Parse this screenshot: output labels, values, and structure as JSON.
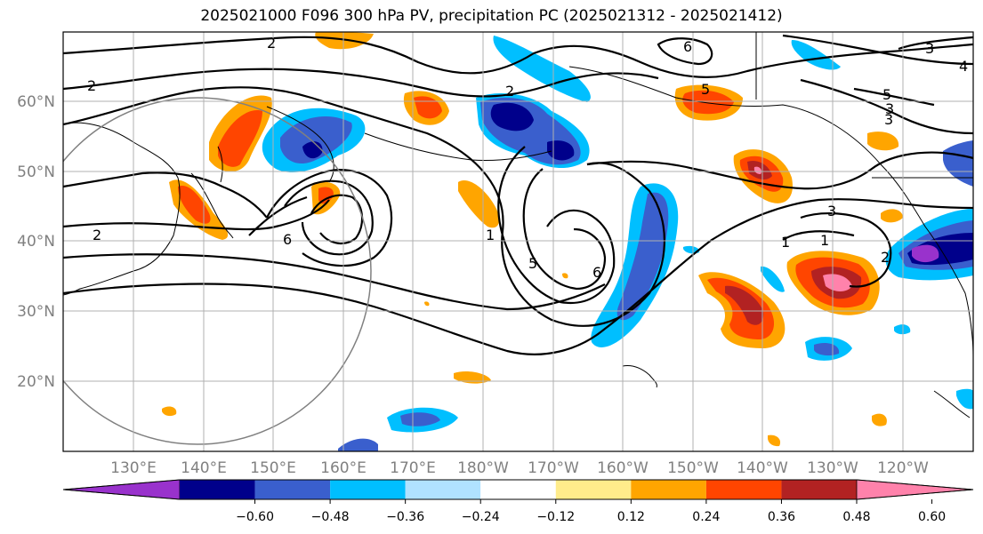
{
  "title": "2025021000 F096 300 hPa PV, precipitation PC (2025021312 - 2025021412)",
  "map": {
    "lat_labels": [
      "60°N",
      "50°N",
      "40°N",
      "30°N",
      "20°N"
    ],
    "lon_labels": [
      "130°E",
      "140°E",
      "150°E",
      "160°E",
      "170°E",
      "180°W",
      "170°W",
      "160°W",
      "150°W",
      "140°W",
      "130°W",
      "120°W"
    ],
    "contour_labels": [
      "2",
      "2",
      "2",
      "2",
      "6",
      "1",
      "5",
      "6",
      "6",
      "5",
      "3",
      "4",
      "3",
      "3",
      "1",
      "1",
      "2",
      "5",
      "3"
    ]
  },
  "colorbar": {
    "ticks": [
      "−0.60",
      "−0.48",
      "−0.36",
      "−0.24",
      "−0.12",
      "0.12",
      "0.24",
      "0.36",
      "0.48",
      "0.60"
    ],
    "colors": [
      "#9932cc",
      "#00008b",
      "#3a5fcd",
      "#00bfff",
      "#b0e2ff",
      "#ffffff",
      "#ffec8b",
      "#ffa500",
      "#ff4500",
      "#b22222",
      "#ff82ab"
    ]
  }
}
